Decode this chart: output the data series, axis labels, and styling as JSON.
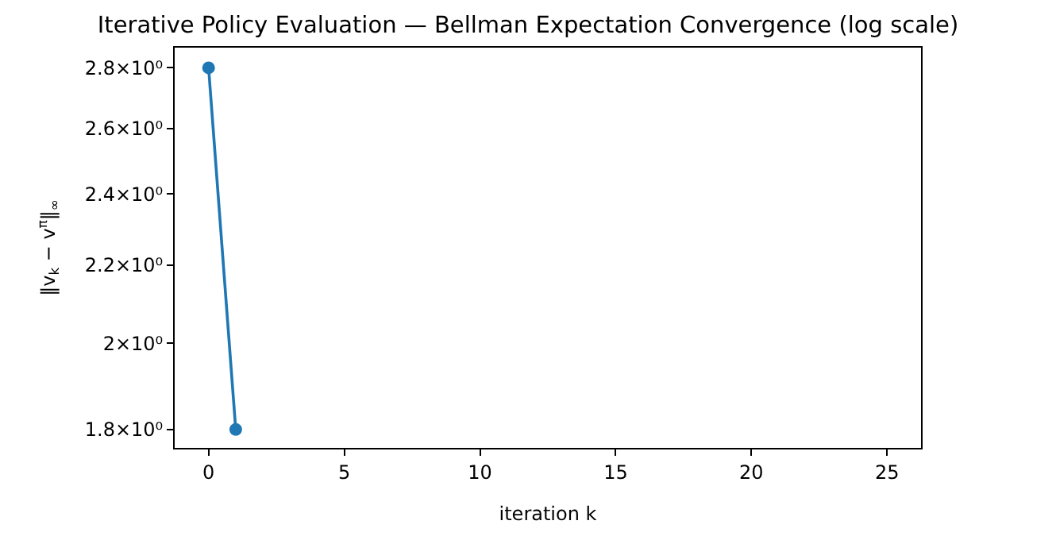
{
  "chart_data": {
    "type": "line",
    "title": "Iterative Policy Evaluation — Bellman Expectation Convergence (log scale)",
    "xlabel": "iteration k",
    "ylabel": "‖v$_{k}$ − v$^{π}$‖$_{∞}$",
    "x": [
      0,
      1
    ],
    "series": [
      {
        "color": "#1f77b4",
        "values": [
          2.8,
          1.8
        ]
      }
    ],
    "log": "y",
    "marker": "circle",
    "line_style": "solid",
    "xlim": [
      -1.25,
      26.25
    ],
    "xticks": [
      0,
      5,
      10,
      15,
      20,
      25
    ],
    "ylim": [
      1.76,
      2.87
    ],
    "yticks": [
      {
        "value": 1.8,
        "label": "1.8×10⁰"
      },
      {
        "value": 2,
        "label": "2×10⁰"
      },
      {
        "value": 2.2,
        "label": "2.2×10⁰"
      },
      {
        "value": 2.4,
        "label": "2.4×10⁰"
      },
      {
        "value": 2.6,
        "label": "2.6×10⁰"
      },
      {
        "value": 2.8,
        "label": "2.8×10⁰"
      }
    ]
  }
}
